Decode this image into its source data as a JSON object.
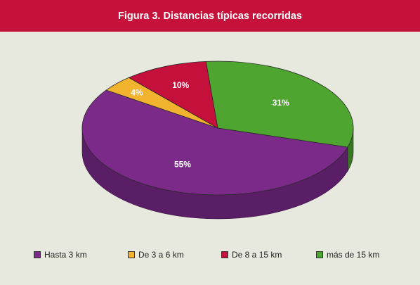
{
  "title": "Figura 3. Distancias típicas recorridas",
  "chart_data": {
    "type": "pie",
    "style": "3d",
    "series": [
      {
        "name": "Hasta 3 km",
        "value": 55,
        "label": "55%",
        "color": "#7b2a8a",
        "side_color": "#5a1e66"
      },
      {
        "name": "De 3 a 6 km",
        "value": 4,
        "label": "4%",
        "color": "#f2b32e",
        "side_color": "#c68c1a"
      },
      {
        "name": "De 8 a 15 km",
        "value": 10,
        "label": "10%",
        "color": "#c4103a",
        "side_color": "#8e0b2a"
      },
      {
        "name": "más de 15 km",
        "value": 31,
        "label": "31%",
        "color": "#4ea52f",
        "side_color": "#357a20"
      }
    ],
    "legend_position": "bottom"
  }
}
